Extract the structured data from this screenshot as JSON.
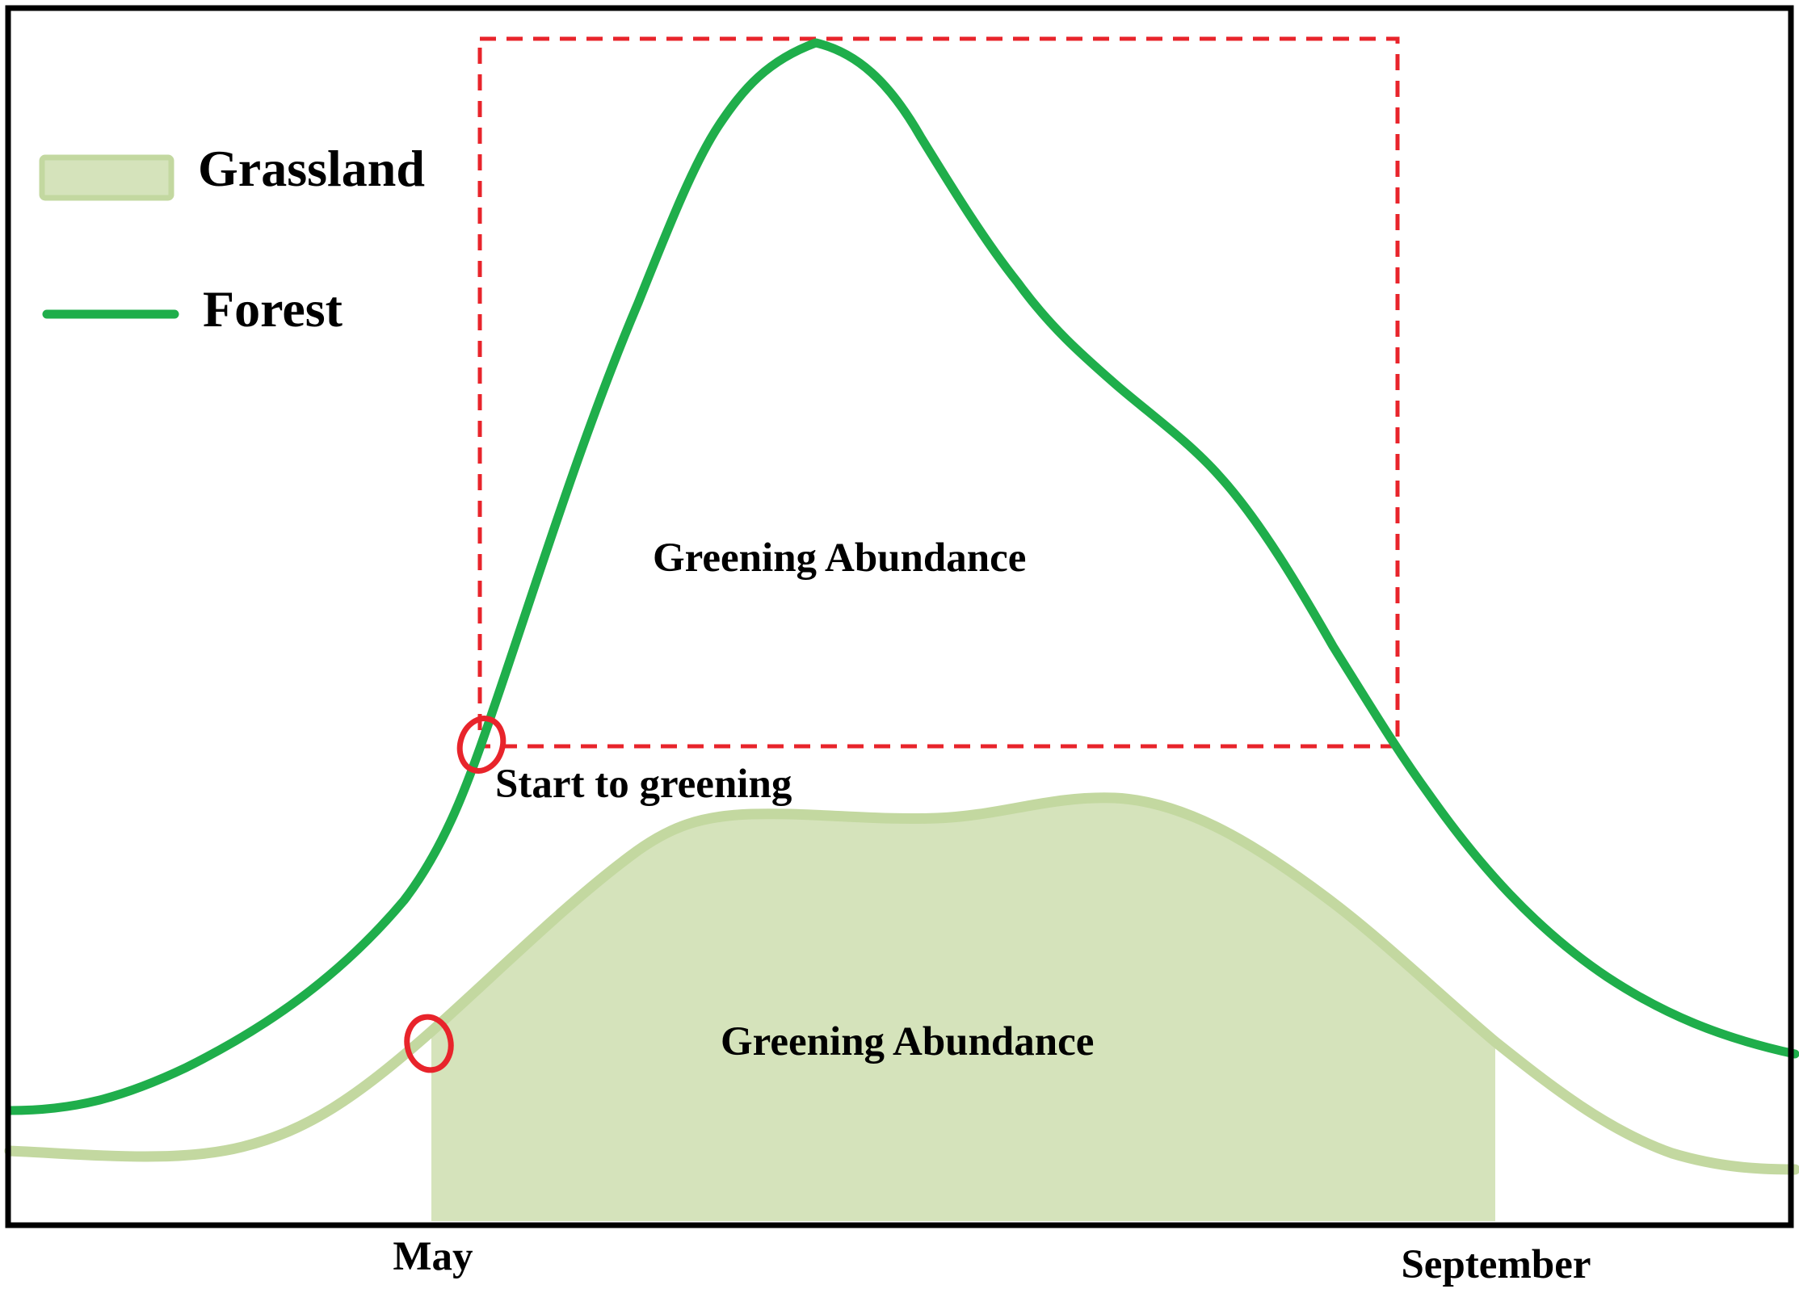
{
  "legend": {
    "grassland": "Grassland",
    "forest": "Forest"
  },
  "labels": {
    "forest_area": "Greening Abundance",
    "grassland_area": "Greening Abundance",
    "start": "Start to greening"
  },
  "axis": {
    "may": "May",
    "september": "September"
  },
  "colors": {
    "forest_line": "#1fae4b",
    "grassland_fill": "#d5e3bb",
    "grassland_line": "#c3d8a0",
    "highlight": "#e8242b",
    "frame": "#000000"
  }
}
